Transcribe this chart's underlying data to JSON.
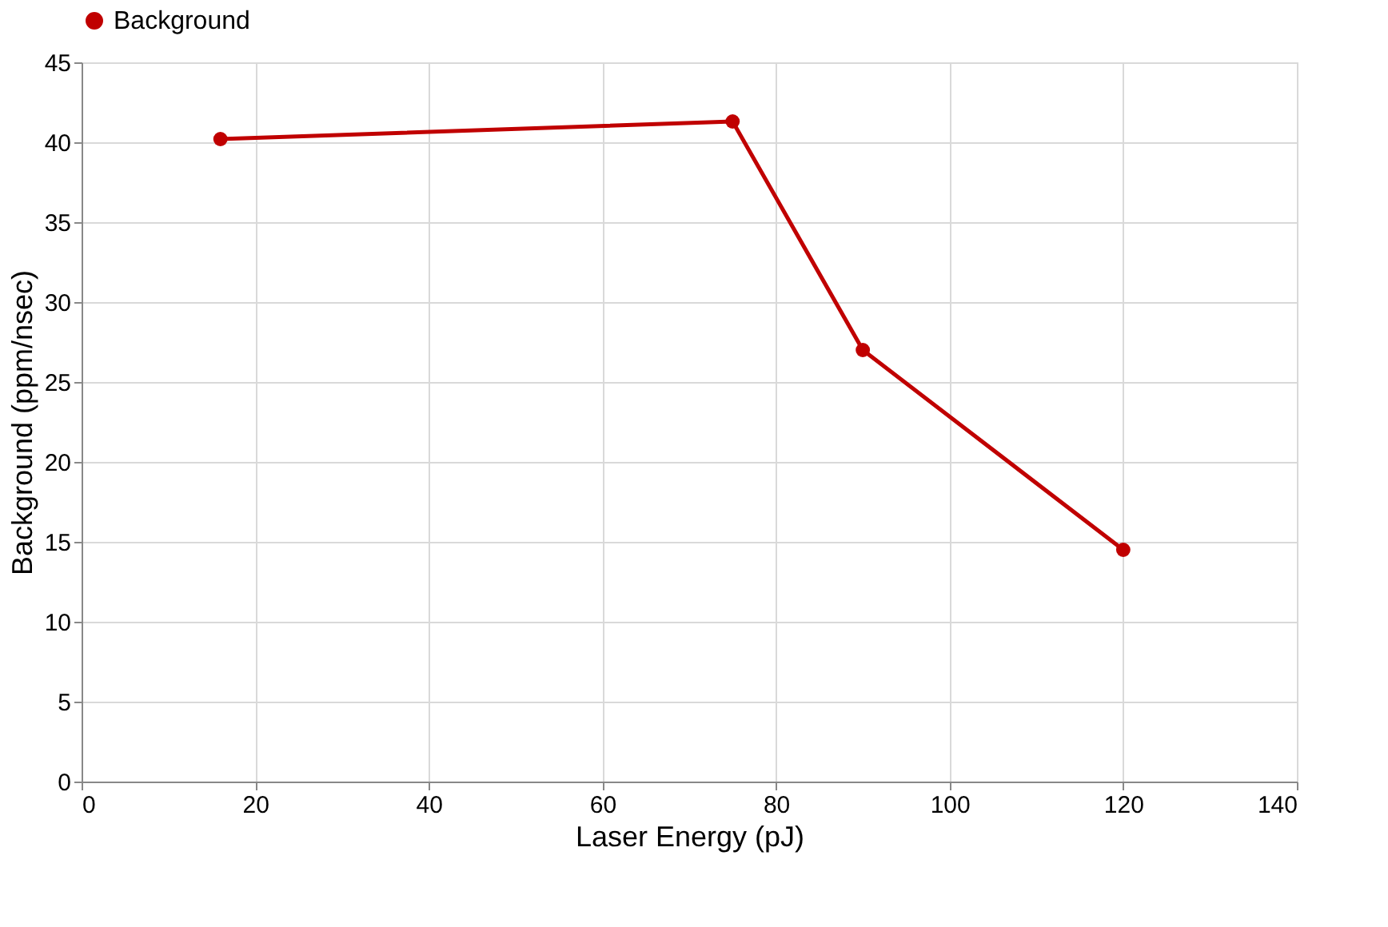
{
  "chart_data": {
    "type": "line",
    "xlabel": "Laser Energy (pJ)",
    "ylabel": "Background (ppm/nsec)",
    "x": [
      16,
      75,
      90,
      120
    ],
    "series": [
      {
        "name": "Background",
        "color": "#c00000",
        "values": [
          40.2,
          41.3,
          27.0,
          14.5
        ]
      }
    ],
    "xlim": [
      0,
      140
    ],
    "xticks": [
      0,
      20,
      40,
      60,
      80,
      100,
      120,
      140
    ],
    "ylim": [
      0,
      45
    ],
    "yticks": [
      0,
      5,
      10,
      15,
      20,
      25,
      30,
      35,
      40,
      45
    ],
    "grid": true,
    "legend": "top",
    "marker": "circle",
    "line_style": "solid"
  }
}
